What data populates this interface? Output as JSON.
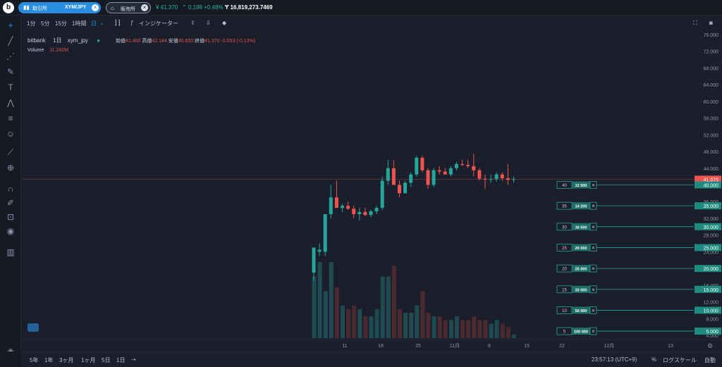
{
  "topbar": {
    "exchange_label": "取引所",
    "pair": "XYM/JPY",
    "sale_label": "販売所",
    "last_price": "¥ 41.370",
    "change": "0.198 +0.48%",
    "volume": "16,819,273.7469"
  },
  "toolbar": {
    "intervals": [
      "1分",
      "5分",
      "15分",
      "1時間",
      "日"
    ],
    "indicator_label": "インジケーター"
  },
  "legend": {
    "exchange": "bitbank",
    "interval": "1日",
    "symbol": "xym_jpy",
    "open_label": "始値",
    "open": "41.460",
    "high_label": "高値",
    "high": "42.144",
    "low_label": "安値",
    "low": "40.650",
    "close_label": "終値",
    "close": "41.370",
    "change": "-0.053 (-0.13%)",
    "volume_label": "Volume",
    "volume_value": "11.242M"
  },
  "bottombar": {
    "ranges": [
      "5年",
      "1年",
      "3ヶ月",
      "1ヶ月",
      "5日",
      "1日"
    ],
    "time": "23:57:13 (UTC+9)",
    "percent": "%",
    "log": "ログスケール",
    "auto": "自動"
  },
  "colors": {
    "up": "#26a69a",
    "down": "#ef5350",
    "accent": "#2a8ee0"
  },
  "chart_data": {
    "type": "candlestick",
    "y_axis": {
      "ticks": [
        "76.000",
        "72.000",
        "68.000",
        "64.000",
        "60.000",
        "56.000",
        "52.000",
        "48.000",
        "44.000",
        "40.000",
        "36.000",
        "32.000",
        "28.000",
        "24.000",
        "20.000",
        "16.000",
        "12.000",
        "8.000",
        "4.000"
      ],
      "ylim": [
        4,
        76
      ]
    },
    "current_price_label": "41.370",
    "x_ticks": [
      "11",
      "18",
      "25",
      "11月",
      "8",
      "15",
      "22",
      "12月",
      "13"
    ],
    "orders": [
      {
        "left": "40",
        "mid": "12 500",
        "price": "40.000"
      },
      {
        "left": "35",
        "mid": "14 200",
        "price": "35.000"
      },
      {
        "left": "30",
        "mid": "16 500",
        "price": "30.000"
      },
      {
        "left": "25",
        "mid": "20 000",
        "price": "25.000"
      },
      {
        "left": "20",
        "mid": "25 000",
        "price": "20.000"
      },
      {
        "left": "15",
        "mid": "33 000",
        "price": "15.000"
      },
      {
        "left": "10",
        "mid": "50 000",
        "price": "10.000"
      },
      {
        "left": "5",
        "mid": "100 000",
        "price": "5.000"
      }
    ],
    "candles": [
      {
        "o": 19,
        "h": 25,
        "l": 17,
        "c": 25
      },
      {
        "o": 24,
        "h": 26,
        "l": 23,
        "c": 24.5
      },
      {
        "o": 24,
        "h": 33,
        "l": 23,
        "c": 33
      },
      {
        "o": 33,
        "h": 40,
        "l": 32,
        "c": 37
      },
      {
        "o": 37,
        "h": 41,
        "l": 35,
        "c": 34.5
      },
      {
        "o": 34.5,
        "h": 35.5,
        "l": 33.5,
        "c": 35
      },
      {
        "o": 35,
        "h": 36,
        "l": 34,
        "c": 34.3
      },
      {
        "o": 34.3,
        "h": 35,
        "l": 32,
        "c": 33
      },
      {
        "o": 33,
        "h": 34.5,
        "l": 31.5,
        "c": 33.5
      },
      {
        "o": 33.5,
        "h": 34.5,
        "l": 32.5,
        "c": 32.8
      },
      {
        "o": 32.8,
        "h": 34,
        "l": 32.3,
        "c": 33.7
      },
      {
        "o": 33.7,
        "h": 35,
        "l": 33,
        "c": 34.5
      },
      {
        "o": 34.5,
        "h": 42,
        "l": 34,
        "c": 41
      },
      {
        "o": 41,
        "h": 46,
        "l": 40,
        "c": 44
      },
      {
        "o": 44,
        "h": 46,
        "l": 40,
        "c": 40
      },
      {
        "o": 40,
        "h": 41,
        "l": 37,
        "c": 38
      },
      {
        "o": 38,
        "h": 41,
        "l": 38,
        "c": 40.5
      },
      {
        "o": 40.5,
        "h": 43,
        "l": 39.5,
        "c": 42.5
      },
      {
        "o": 42.5,
        "h": 47,
        "l": 42,
        "c": 46.5
      },
      {
        "o": 46.5,
        "h": 47,
        "l": 43,
        "c": 43.5
      },
      {
        "o": 43.5,
        "h": 44,
        "l": 39,
        "c": 40
      },
      {
        "o": 40,
        "h": 44,
        "l": 39.5,
        "c": 43.5
      },
      {
        "o": 43.5,
        "h": 44.5,
        "l": 42.5,
        "c": 43.2
      },
      {
        "o": 43.2,
        "h": 44,
        "l": 42.5,
        "c": 42.5
      },
      {
        "o": 42.5,
        "h": 44.5,
        "l": 42,
        "c": 44
      },
      {
        "o": 44,
        "h": 45.5,
        "l": 43.5,
        "c": 45
      },
      {
        "o": 45,
        "h": 46,
        "l": 44.5,
        "c": 44.8
      },
      {
        "o": 44.8,
        "h": 46,
        "l": 44,
        "c": 44.5
      },
      {
        "o": 44.5,
        "h": 47.5,
        "l": 42,
        "c": 43.5
      },
      {
        "o": 43.5,
        "h": 44,
        "l": 41,
        "c": 41.5
      },
      {
        "o": 41.5,
        "h": 42.5,
        "l": 39,
        "c": 41.3
      },
      {
        "o": 41.3,
        "h": 42.5,
        "l": 40.5,
        "c": 41.4
      },
      {
        "o": 41.4,
        "h": 43,
        "l": 40.8,
        "c": 42.5
      },
      {
        "o": 42.5,
        "h": 43,
        "l": 41,
        "c": 41.6
      },
      {
        "o": 41.6,
        "h": 45,
        "l": 40,
        "c": 41.2
      },
      {
        "o": 41.2,
        "h": 42,
        "l": 40.5,
        "c": 41.37
      }
    ],
    "volumes": [
      17,
      21,
      13,
      21,
      14,
      9,
      8,
      9,
      8,
      6,
      6,
      8,
      17,
      17,
      20,
      8,
      7,
      7,
      9,
      13,
      7,
      6,
      6,
      5,
      5,
      6,
      5,
      5,
      6,
      5,
      5,
      4,
      5,
      4,
      3,
      1
    ]
  }
}
